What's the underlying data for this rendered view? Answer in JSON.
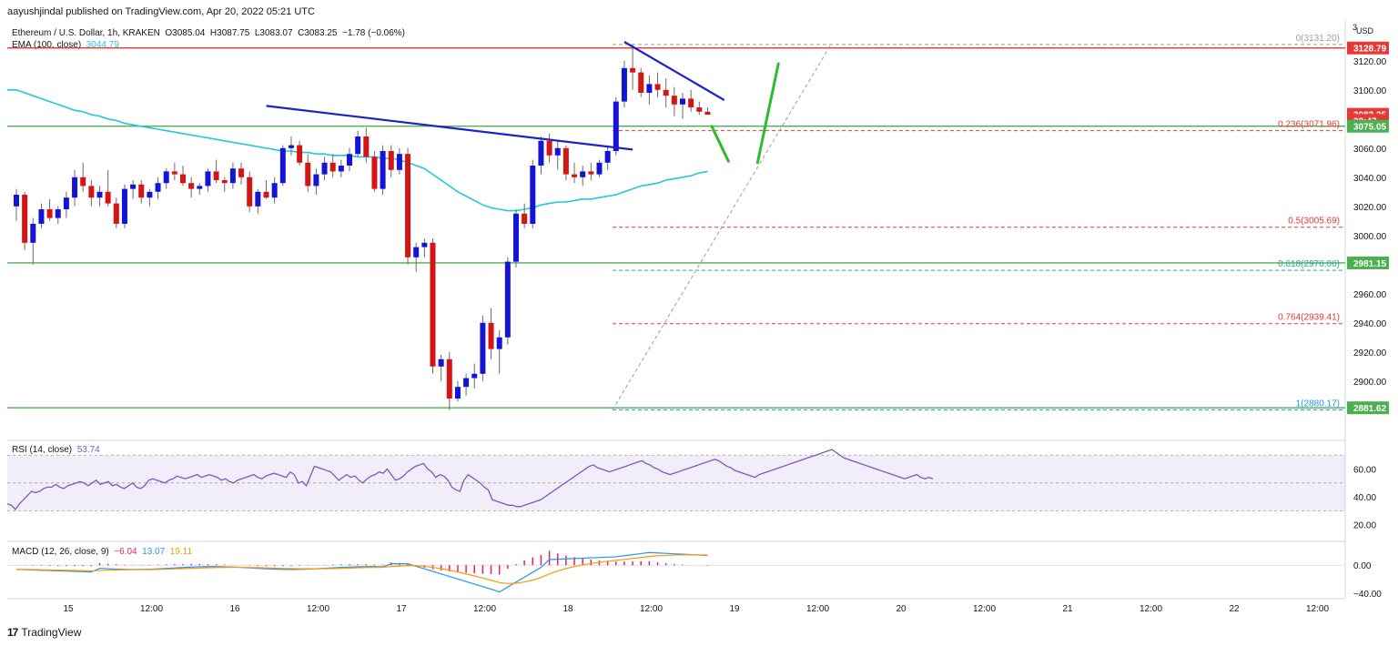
{
  "publisher": "aayushjindal published on TradingView.com, Apr 20, 2022 05:21 UTC",
  "branding": {
    "logo_text": "TradingView",
    "logo_mark": "17"
  },
  "header": {
    "symbol": "Ethereum / U.S. Dollar, 1h, KRAKEN",
    "ohlc": {
      "o": "O3085.04",
      "h": "H3087.75",
      "l": "L3083.07",
      "c": "C3083.25",
      "chg": "−1.78 (−0.06%)"
    },
    "ema_label": "EMA (100, close)",
    "ema_value": "3044.79"
  },
  "price_axis": {
    "currency": "USD",
    "currency_digit": "3",
    "ticks": [
      "3120.00",
      "3100.00",
      "3080.00",
      "3060.00",
      "3040.00",
      "3020.00",
      "3000.00",
      "2980.00",
      "2960.00",
      "2940.00",
      "2920.00",
      "2900.00"
    ],
    "badges": [
      {
        "text": "3128.79",
        "value": 3128.79,
        "color": "#e53935"
      },
      {
        "text": "3083.25",
        "value": 3083.25,
        "color": "#e53935"
      },
      {
        "text": "38:47",
        "value": 3079.0,
        "color": "#e53935"
      },
      {
        "text": "3075.05",
        "value": 3075.05,
        "color": "#4caf50"
      },
      {
        "text": "2981.15",
        "value": 2981.15,
        "color": "#4caf50"
      },
      {
        "text": "2881.62",
        "value": 2881.62,
        "color": "#4caf50"
      }
    ]
  },
  "time_axis": [
    "15",
    "12:00",
    "16",
    "12:00",
    "17",
    "12:00",
    "18",
    "12:00",
    "19",
    "12:00",
    "20",
    "12:00",
    "21",
    "12:00",
    "22",
    "12:00"
  ],
  "fib_levels": [
    {
      "label": "0(3131.20)",
      "value": 3131.2,
      "color": "#9e9e9e"
    },
    {
      "label": "0.236(3071.96)",
      "value": 3071.96,
      "color": "#e53935"
    },
    {
      "label": "0.5(3005.69)",
      "value": 3005.69,
      "color": "#e53935"
    },
    {
      "label": "0.618(2976.06)",
      "value": 2976.06,
      "color": "#26a69a"
    },
    {
      "label": "0.764(2939.41)",
      "value": 2939.41,
      "color": "#e53935"
    },
    {
      "label": "1(2880.17)",
      "value": 2880.17,
      "color": "#2196f3"
    }
  ],
  "rsi": {
    "label": "RSI (14, close)",
    "value": "53.74",
    "ticks": [
      "60.00",
      "40.00",
      "20.00"
    ],
    "values": [
      35,
      34,
      31,
      35,
      38,
      41,
      44,
      43,
      44,
      46,
      47,
      47,
      49,
      47,
      46,
      48,
      49,
      50,
      51,
      50,
      48,
      50,
      52,
      49,
      50,
      51,
      48,
      49,
      47,
      46,
      48,
      50,
      47,
      46,
      48,
      52,
      53,
      52,
      51,
      50,
      52,
      53,
      55,
      54,
      53,
      54,
      55,
      56,
      54,
      55,
      56,
      55,
      54,
      52,
      53,
      51,
      50,
      52,
      53,
      54,
      55,
      56,
      54,
      53,
      55,
      56,
      57,
      56,
      55,
      54,
      58,
      56,
      50,
      51,
      48,
      55,
      62,
      61,
      60,
      59,
      58,
      55,
      52,
      54,
      56,
      54,
      55,
      52,
      50,
      53,
      55,
      56,
      58,
      57,
      60,
      56,
      52,
      53,
      55,
      58,
      60,
      62,
      63,
      64,
      60,
      58,
      54,
      56,
      55,
      52,
      47,
      45,
      44,
      52,
      56,
      54,
      52,
      50,
      47,
      45,
      38,
      37,
      36,
      35,
      34,
      34,
      33,
      33,
      34,
      35,
      36,
      37,
      38,
      40,
      42,
      44,
      46,
      48,
      50,
      52,
      54,
      56,
      58,
      60,
      62,
      63,
      61,
      60,
      59,
      58,
      59,
      60,
      61,
      62,
      63,
      64,
      65,
      66,
      64,
      63,
      61,
      60,
      58,
      57,
      56,
      57,
      58,
      59,
      60,
      61,
      62,
      63,
      64,
      65,
      66,
      67,
      66,
      64,
      62,
      61,
      59,
      58,
      57,
      56,
      55,
      54,
      56,
      57,
      58,
      59,
      60,
      61,
      62,
      63,
      64,
      65,
      66,
      67,
      68,
      69,
      70,
      71,
      72,
      73,
      74,
      72,
      70,
      68,
      67,
      66,
      65,
      64,
      63,
      62,
      61,
      60,
      59,
      58,
      57,
      56,
      55,
      54,
      53,
      54,
      55,
      56,
      54,
      53,
      54,
      53
    ]
  },
  "macd": {
    "label": "MACD (12, 26, close, 9)",
    "hist_value": "−6.04",
    "macd_value": "13.07",
    "signal_value": "19.11",
    "ticks": [
      "0.00",
      "−40.00"
    ],
    "hist_color": "#e91e63",
    "macd_color": "#2196f3",
    "signal_color": "#ff9800"
  },
  "chart_data": [
    {
      "type": "candlestick",
      "title": "Ethereum / U.S. Dollar, 1h, KRAKEN",
      "ylabel": "USD",
      "ylim": [
        2868,
        3148
      ],
      "x_start_date": "2022-04-14",
      "x_ticks": [
        "15",
        "12:00",
        "16",
        "12:00",
        "17",
        "12:00",
        "18",
        "12:00",
        "19",
        "12:00",
        "20",
        "12:00",
        "21",
        "12:00",
        "22",
        "12:00"
      ],
      "series": [
        {
          "name": "Ethereum / U.S. Dollar",
          "color_up": "#1414d6",
          "color_down": "#d61414",
          "ohlc": [
            [
              3020,
              3032,
              3010,
              3028
            ],
            [
              3028,
              3030,
              2990,
              2995
            ],
            [
              2995,
              3012,
              2980,
              3008
            ],
            [
              3008,
              3022,
              3005,
              3018
            ],
            [
              3018,
              3025,
              3010,
              3012
            ],
            [
              3012,
              3020,
              3008,
              3018
            ],
            [
              3018,
              3030,
              3012,
              3026
            ],
            [
              3026,
              3045,
              3020,
              3040
            ],
            [
              3040,
              3050,
              3030,
              3034
            ],
            [
              3034,
              3038,
              3020,
              3026
            ],
            [
              3026,
              3034,
              3020,
              3030
            ],
            [
              3030,
              3045,
              3020,
              3022
            ],
            [
              3022,
              3026,
              3005,
              3008
            ],
            [
              3008,
              3035,
              3005,
              3032
            ],
            [
              3032,
              3038,
              3025,
              3035
            ],
            [
              3035,
              3038,
              3022,
              3026
            ],
            [
              3026,
              3032,
              3020,
              3030
            ],
            [
              3030,
              3040,
              3025,
              3036
            ],
            [
              3036,
              3046,
              3032,
              3044
            ],
            [
              3044,
              3050,
              3038,
              3042
            ],
            [
              3042,
              3048,
              3034,
              3036
            ],
            [
              3036,
              3040,
              3026,
              3032
            ],
            [
              3032,
              3036,
              3028,
              3034
            ],
            [
              3034,
              3046,
              3030,
              3044
            ],
            [
              3044,
              3052,
              3036,
              3038
            ],
            [
              3038,
              3040,
              3030,
              3036
            ],
            [
              3036,
              3050,
              3032,
              3046
            ],
            [
              3046,
              3050,
              3035,
              3040
            ],
            [
              3040,
              3044,
              3016,
              3020
            ],
            [
              3020,
              3032,
              3015,
              3030
            ],
            [
              3030,
              3038,
              3025,
              3026
            ],
            [
              3026,
              3040,
              3022,
              3036
            ],
            [
              3036,
              3062,
              3034,
              3060
            ],
            [
              3060,
              3068,
              3055,
              3062
            ],
            [
              3062,
              3065,
              3048,
              3050
            ],
            [
              3050,
              3056,
              3030,
              3034
            ],
            [
              3034,
              3046,
              3028,
              3042
            ],
            [
              3042,
              3054,
              3038,
              3050
            ],
            [
              3050,
              3056,
              3040,
              3044
            ],
            [
              3044,
              3052,
              3040,
              3048
            ],
            [
              3048,
              3060,
              3044,
              3056
            ],
            [
              3056,
              3072,
              3054,
              3068
            ],
            [
              3068,
              3074,
              3050,
              3054
            ],
            [
              3054,
              3058,
              3030,
              3032
            ],
            [
              3032,
              3062,
              3028,
              3058
            ],
            [
              3058,
              3062,
              3040,
              3045
            ],
            [
              3045,
              3060,
              3042,
              3056
            ],
            [
              3056,
              3060,
              2980,
              2985
            ],
            [
              2985,
              2995,
              2975,
              2992
            ],
            [
              2992,
              2998,
              2985,
              2995
            ],
            [
              2995,
              2998,
              2905,
              2910
            ],
            [
              2910,
              2918,
              2900,
              2915
            ],
            [
              2915,
              2920,
              2880,
              2888
            ],
            [
              2888,
              2900,
              2886,
              2896
            ],
            [
              2896,
              2905,
              2890,
              2902
            ],
            [
              2902,
              2912,
              2895,
              2905
            ],
            [
              2905,
              2945,
              2900,
              2940
            ],
            [
              2940,
              2950,
              2915,
              2922
            ],
            [
              2922,
              2935,
              2905,
              2930
            ],
            [
              2930,
              2985,
              2925,
              2982
            ],
            [
              2982,
              3018,
              2978,
              3015
            ],
            [
              3015,
              3022,
              3005,
              3008
            ],
            [
              3008,
              3052,
              3005,
              3048
            ],
            [
              3048,
              3068,
              3042,
              3065
            ],
            [
              3065,
              3070,
              3050,
              3055
            ],
            [
              3055,
              3065,
              3045,
              3060
            ],
            [
              3060,
              3062,
              3038,
              3042
            ],
            [
              3042,
              3050,
              3036,
              3040
            ],
            [
              3040,
              3048,
              3034,
              3044
            ],
            [
              3044,
              3050,
              3038,
              3042
            ],
            [
              3042,
              3052,
              3040,
              3050
            ],
            [
              3050,
              3062,
              3045,
              3058
            ],
            [
              3058,
              3095,
              3055,
              3092
            ],
            [
              3092,
              3120,
              3088,
              3115
            ],
            [
              3115,
              3131,
              3100,
              3112
            ],
            [
              3112,
              3115,
              3095,
              3098
            ],
            [
              3098,
              3110,
              3090,
              3104
            ],
            [
              3104,
              3112,
              3095,
              3100
            ],
            [
              3100,
              3108,
              3088,
              3096
            ],
            [
              3096,
              3102,
              3082,
              3090
            ],
            [
              3090,
              3098,
              3080,
              3094
            ],
            [
              3094,
              3100,
              3085,
              3088
            ],
            [
              3088,
              3092,
              3083,
              3085
            ],
            [
              3085,
              3088,
              3083,
              3083
            ]
          ]
        },
        {
          "name": "EMA (100, close)",
          "color": "#26c6da",
          "values": [
            3100,
            3098,
            3096,
            3094,
            3092,
            3090,
            3088,
            3086,
            3085,
            3083,
            3082,
            3080,
            3079,
            3077,
            3076,
            3075,
            3074,
            3073,
            3072,
            3071,
            3070,
            3069,
            3068,
            3067,
            3066,
            3065,
            3064,
            3063,
            3062,
            3061,
            3060,
            3059,
            3058,
            3058,
            3057,
            3057,
            3056,
            3056,
            3055,
            3055,
            3055,
            3054,
            3054,
            3054,
            3053,
            3053,
            3052,
            3050,
            3048,
            3046,
            3042,
            3038,
            3034,
            3030,
            3027,
            3024,
            3021,
            3019,
            3018,
            3017,
            3017,
            3018,
            3019,
            3021,
            3022,
            3023,
            3023,
            3024,
            3025,
            3025,
            3026,
            3027,
            3028,
            3030,
            3032,
            3034,
            3035,
            3036,
            3038,
            3039,
            3040,
            3041,
            3043,
            3044
          ]
        }
      ],
      "trend_lines": [
        {
          "name": "upper-falling-line",
          "color": "#1e22c8",
          "from": [
            30,
            3089
          ],
          "to": [
            74,
            3059
          ]
        },
        {
          "name": "short-falling-line",
          "color": "#1e22c8",
          "from": [
            73,
            3133
          ],
          "to": [
            85,
            3093
          ]
        }
      ],
      "horizontal_levels": [
        {
          "value": 3128.79,
          "color": "#e53935"
        },
        {
          "value": 3075.05,
          "color": "#4caf50"
        },
        {
          "value": 2981.15,
          "color": "#4caf50"
        },
        {
          "value": 2881.62,
          "color": "#4caf50"
        }
      ],
      "annotations": [
        {
          "type": "projection",
          "color": "#2bbd2b",
          "points": [
            [
              83.5,
              3075
            ],
            [
              85.5,
              3051
            ],
            [
              89,
              3050
            ],
            [
              91.5,
              3118
            ]
          ]
        }
      ]
    }
  ]
}
